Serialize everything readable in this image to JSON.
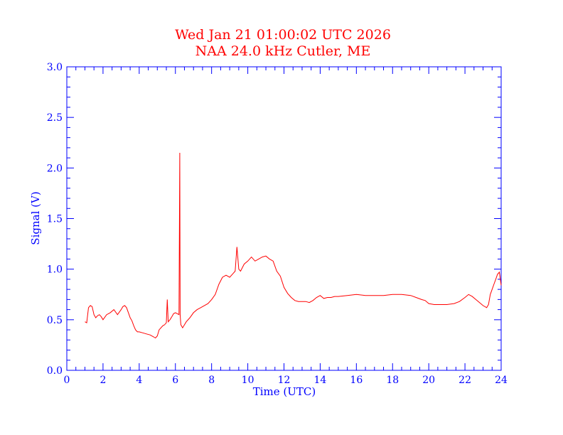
{
  "title_line1": "Wed Jan 21 01:00:02 UTC 2026",
  "title_line2": "NAA 24.0 kHz Cutler, ME",
  "colors": {
    "title": "#ff0000",
    "axis": "#0000ff",
    "series": "#ff0000"
  },
  "chart_data": {
    "type": "line",
    "xlabel": "Time (UTC)",
    "ylabel": "Signal (V)",
    "xlim": [
      0,
      24
    ],
    "ylim": [
      0,
      3.0
    ],
    "x_ticks": [
      "0",
      "2",
      "4",
      "6",
      "8",
      "10",
      "12",
      "14",
      "16",
      "18",
      "20",
      "22",
      "24"
    ],
    "y_ticks": [
      "0.0",
      "0.5",
      "1.0",
      "1.5",
      "2.0",
      "2.5",
      "3.0"
    ],
    "grid": false,
    "series": [
      {
        "x": [
          1.0,
          1.1,
          1.2,
          1.3,
          1.4,
          1.5,
          1.6,
          1.7,
          1.8,
          1.9,
          2.0,
          2.2,
          2.4,
          2.6,
          2.8,
          3.0,
          3.1,
          3.2,
          3.3,
          3.4,
          3.5,
          3.6,
          3.7,
          3.8,
          3.9,
          4.0,
          4.2,
          4.4,
          4.6,
          4.8,
          4.9,
          5.0,
          5.1,
          5.2,
          5.3,
          5.4,
          5.5,
          5.55,
          5.6,
          5.7,
          5.8,
          5.9,
          6.0,
          6.1,
          6.2,
          6.24,
          6.26,
          6.3,
          6.4,
          6.5,
          6.6,
          6.8,
          7.0,
          7.2,
          7.4,
          7.6,
          7.8,
          8.0,
          8.2,
          8.4,
          8.6,
          8.8,
          9.0,
          9.2,
          9.3,
          9.4,
          9.5,
          9.6,
          9.8,
          10.0,
          10.2,
          10.4,
          10.6,
          10.8,
          11.0,
          11.2,
          11.4,
          11.6,
          11.8,
          12.0,
          12.2,
          12.4,
          12.6,
          12.8,
          13.0,
          13.2,
          13.4,
          13.6,
          13.8,
          14.0,
          14.2,
          14.4,
          14.6,
          14.8,
          15.0,
          15.5,
          16.0,
          16.5,
          17.0,
          17.5,
          18.0,
          18.5,
          19.0,
          19.3,
          19.6,
          19.8,
          20.0,
          20.3,
          20.6,
          21.0,
          21.4,
          21.7,
          22.0,
          22.2,
          22.4,
          22.6,
          22.8,
          23.0,
          23.2,
          23.3,
          23.4,
          23.5,
          23.6,
          23.7,
          23.8,
          23.9,
          24.0
        ],
        "y": [
          0.48,
          0.47,
          0.62,
          0.64,
          0.63,
          0.55,
          0.52,
          0.54,
          0.55,
          0.53,
          0.5,
          0.55,
          0.57,
          0.6,
          0.55,
          0.6,
          0.63,
          0.64,
          0.62,
          0.57,
          0.52,
          0.49,
          0.44,
          0.4,
          0.38,
          0.38,
          0.37,
          0.36,
          0.35,
          0.33,
          0.32,
          0.34,
          0.4,
          0.42,
          0.44,
          0.45,
          0.47,
          0.7,
          0.48,
          0.5,
          0.53,
          0.56,
          0.57,
          0.56,
          0.55,
          2.15,
          0.55,
          0.45,
          0.42,
          0.45,
          0.48,
          0.52,
          0.57,
          0.6,
          0.62,
          0.64,
          0.66,
          0.7,
          0.75,
          0.85,
          0.92,
          0.94,
          0.92,
          0.96,
          0.98,
          1.22,
          1.0,
          0.98,
          1.05,
          1.08,
          1.12,
          1.08,
          1.1,
          1.12,
          1.13,
          1.1,
          1.08,
          0.98,
          0.93,
          0.82,
          0.76,
          0.72,
          0.69,
          0.68,
          0.68,
          0.68,
          0.67,
          0.69,
          0.72,
          0.74,
          0.71,
          0.72,
          0.72,
          0.73,
          0.73,
          0.74,
          0.75,
          0.74,
          0.74,
          0.74,
          0.75,
          0.75,
          0.74,
          0.72,
          0.7,
          0.69,
          0.66,
          0.65,
          0.65,
          0.65,
          0.66,
          0.68,
          0.72,
          0.75,
          0.73,
          0.7,
          0.67,
          0.64,
          0.62,
          0.65,
          0.75,
          0.8,
          0.85,
          0.9,
          0.95,
          0.97,
          0.84
        ]
      }
    ]
  }
}
